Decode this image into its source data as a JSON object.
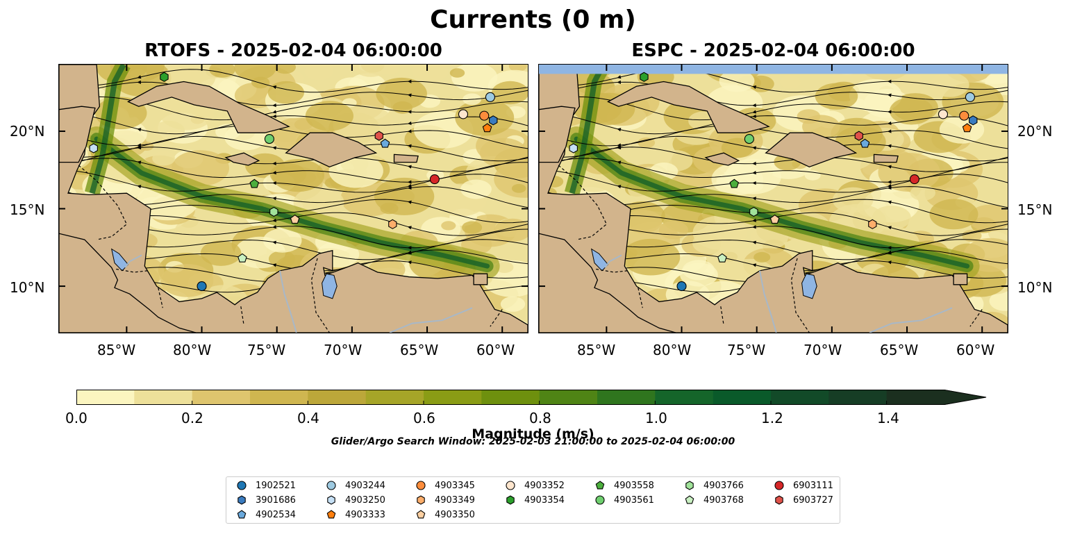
{
  "figure": {
    "title": "Currents (0 m)",
    "colorbar_label": "Magnitude (m/s)",
    "search_window": "Glider/Argo Search Window: 2025-02-03 21:00:00 to 2025-02-04 06:00:00"
  },
  "panels": [
    {
      "id": "left",
      "title": "RTOFS - 2025-02-04 06:00:00"
    },
    {
      "id": "right",
      "title": "ESPC - 2025-02-04 06:00:00"
    }
  ],
  "axes": {
    "lon_ticks": [
      "85°W",
      "80°W",
      "75°W",
      "70°W",
      "65°W",
      "60°W"
    ],
    "lat_ticks": [
      "20°N",
      "15°N",
      "10°N"
    ],
    "lon_range": [
      -89.5,
      -58.3
    ],
    "lat_range": [
      7.0,
      24.3
    ]
  },
  "colorbar": {
    "ticks": [
      "0.0",
      "0.2",
      "0.4",
      "0.6",
      "0.8",
      "1.0",
      "1.2",
      "1.4"
    ],
    "colors": [
      "#fbf5c0",
      "#ede09a",
      "#dec56e",
      "#cfb650",
      "#bca73a",
      "#a6a528",
      "#8a9c15",
      "#6e900e",
      "#4f8415",
      "#2f751e",
      "#15652a",
      "#0a5a2a",
      "#124a28",
      "#163d25",
      "#1b2f1f"
    ]
  },
  "colors": {
    "land": "#d2b48c",
    "lake": "#8fb5e3",
    "river": "#a8b8c8"
  },
  "floats": [
    {
      "id": "1902521",
      "marker": "circle",
      "color": "#1f77b4",
      "left": [
        -80.0,
        10.0
      ],
      "right": [
        -80.0,
        10.0
      ]
    },
    {
      "id": "3901686",
      "marker": "hexagon",
      "color": "#3a7bbf",
      "left": [
        -60.6,
        20.7
      ],
      "right": [
        -60.6,
        20.7
      ]
    },
    {
      "id": "4902534",
      "marker": "pentagon",
      "color": "#6aa9dc",
      "left": [
        -67.8,
        19.2
      ],
      "right": [
        -67.8,
        19.2
      ]
    },
    {
      "id": "4903244",
      "marker": "circle",
      "color": "#9ecae1",
      "left": [
        -60.8,
        22.2
      ],
      "right": [
        -60.8,
        22.2
      ]
    },
    {
      "id": "4903250",
      "marker": "hexagon",
      "color": "#c6e0f5",
      "left": [
        -87.2,
        18.9
      ],
      "right": [
        -87.2,
        18.9
      ]
    },
    {
      "id": "4903333",
      "marker": "pentagon",
      "color": "#ff7f0e",
      "left": [
        -61.0,
        20.2
      ],
      "right": [
        -61.0,
        20.2
      ]
    },
    {
      "id": "4903345",
      "marker": "circle",
      "color": "#fd8d3c",
      "left": [
        -61.2,
        21.0
      ],
      "right": [
        -61.2,
        21.0
      ]
    },
    {
      "id": "4903349",
      "marker": "hexagon",
      "color": "#fdae6b",
      "left": [
        -67.3,
        14.0
      ],
      "right": [
        -67.3,
        14.0
      ]
    },
    {
      "id": "4903350",
      "marker": "pentagon",
      "color": "#fdd0a2",
      "left": [
        -73.8,
        14.3
      ],
      "right": [
        -73.8,
        14.3
      ]
    },
    {
      "id": "4903352",
      "marker": "circle",
      "color": "#fee6ce",
      "left": [
        -62.6,
        21.1
      ],
      "right": [
        -62.6,
        21.1
      ]
    },
    {
      "id": "4903354",
      "marker": "hexagon",
      "color": "#2ca02c",
      "left": [
        -82.5,
        23.5
      ],
      "right": [
        -82.5,
        23.5
      ]
    },
    {
      "id": "4903558",
      "marker": "pentagon",
      "color": "#4caf3d",
      "left": [
        -76.5,
        16.6
      ],
      "right": [
        -76.5,
        16.6
      ]
    },
    {
      "id": "4903561",
      "marker": "circle",
      "color": "#6fcf6f",
      "left": [
        -75.5,
        19.5
      ],
      "right": [
        -75.5,
        19.5
      ]
    },
    {
      "id": "4903766",
      "marker": "hexagon",
      "color": "#a1e39a",
      "left": [
        -75.2,
        14.8
      ],
      "right": [
        -75.2,
        14.8
      ]
    },
    {
      "id": "4903768",
      "marker": "pentagon",
      "color": "#c9f0c2",
      "left": [
        -77.3,
        11.8
      ],
      "right": [
        -77.3,
        11.8
      ]
    },
    {
      "id": "6903111",
      "marker": "circle",
      "color": "#d62728",
      "left": [
        -64.5,
        16.9
      ],
      "right": [
        -64.5,
        16.9
      ]
    },
    {
      "id": "6903727",
      "marker": "hexagon",
      "color": "#e0524a",
      "left": [
        -68.2,
        19.7
      ],
      "right": [
        -68.2,
        19.7
      ]
    }
  ]
}
